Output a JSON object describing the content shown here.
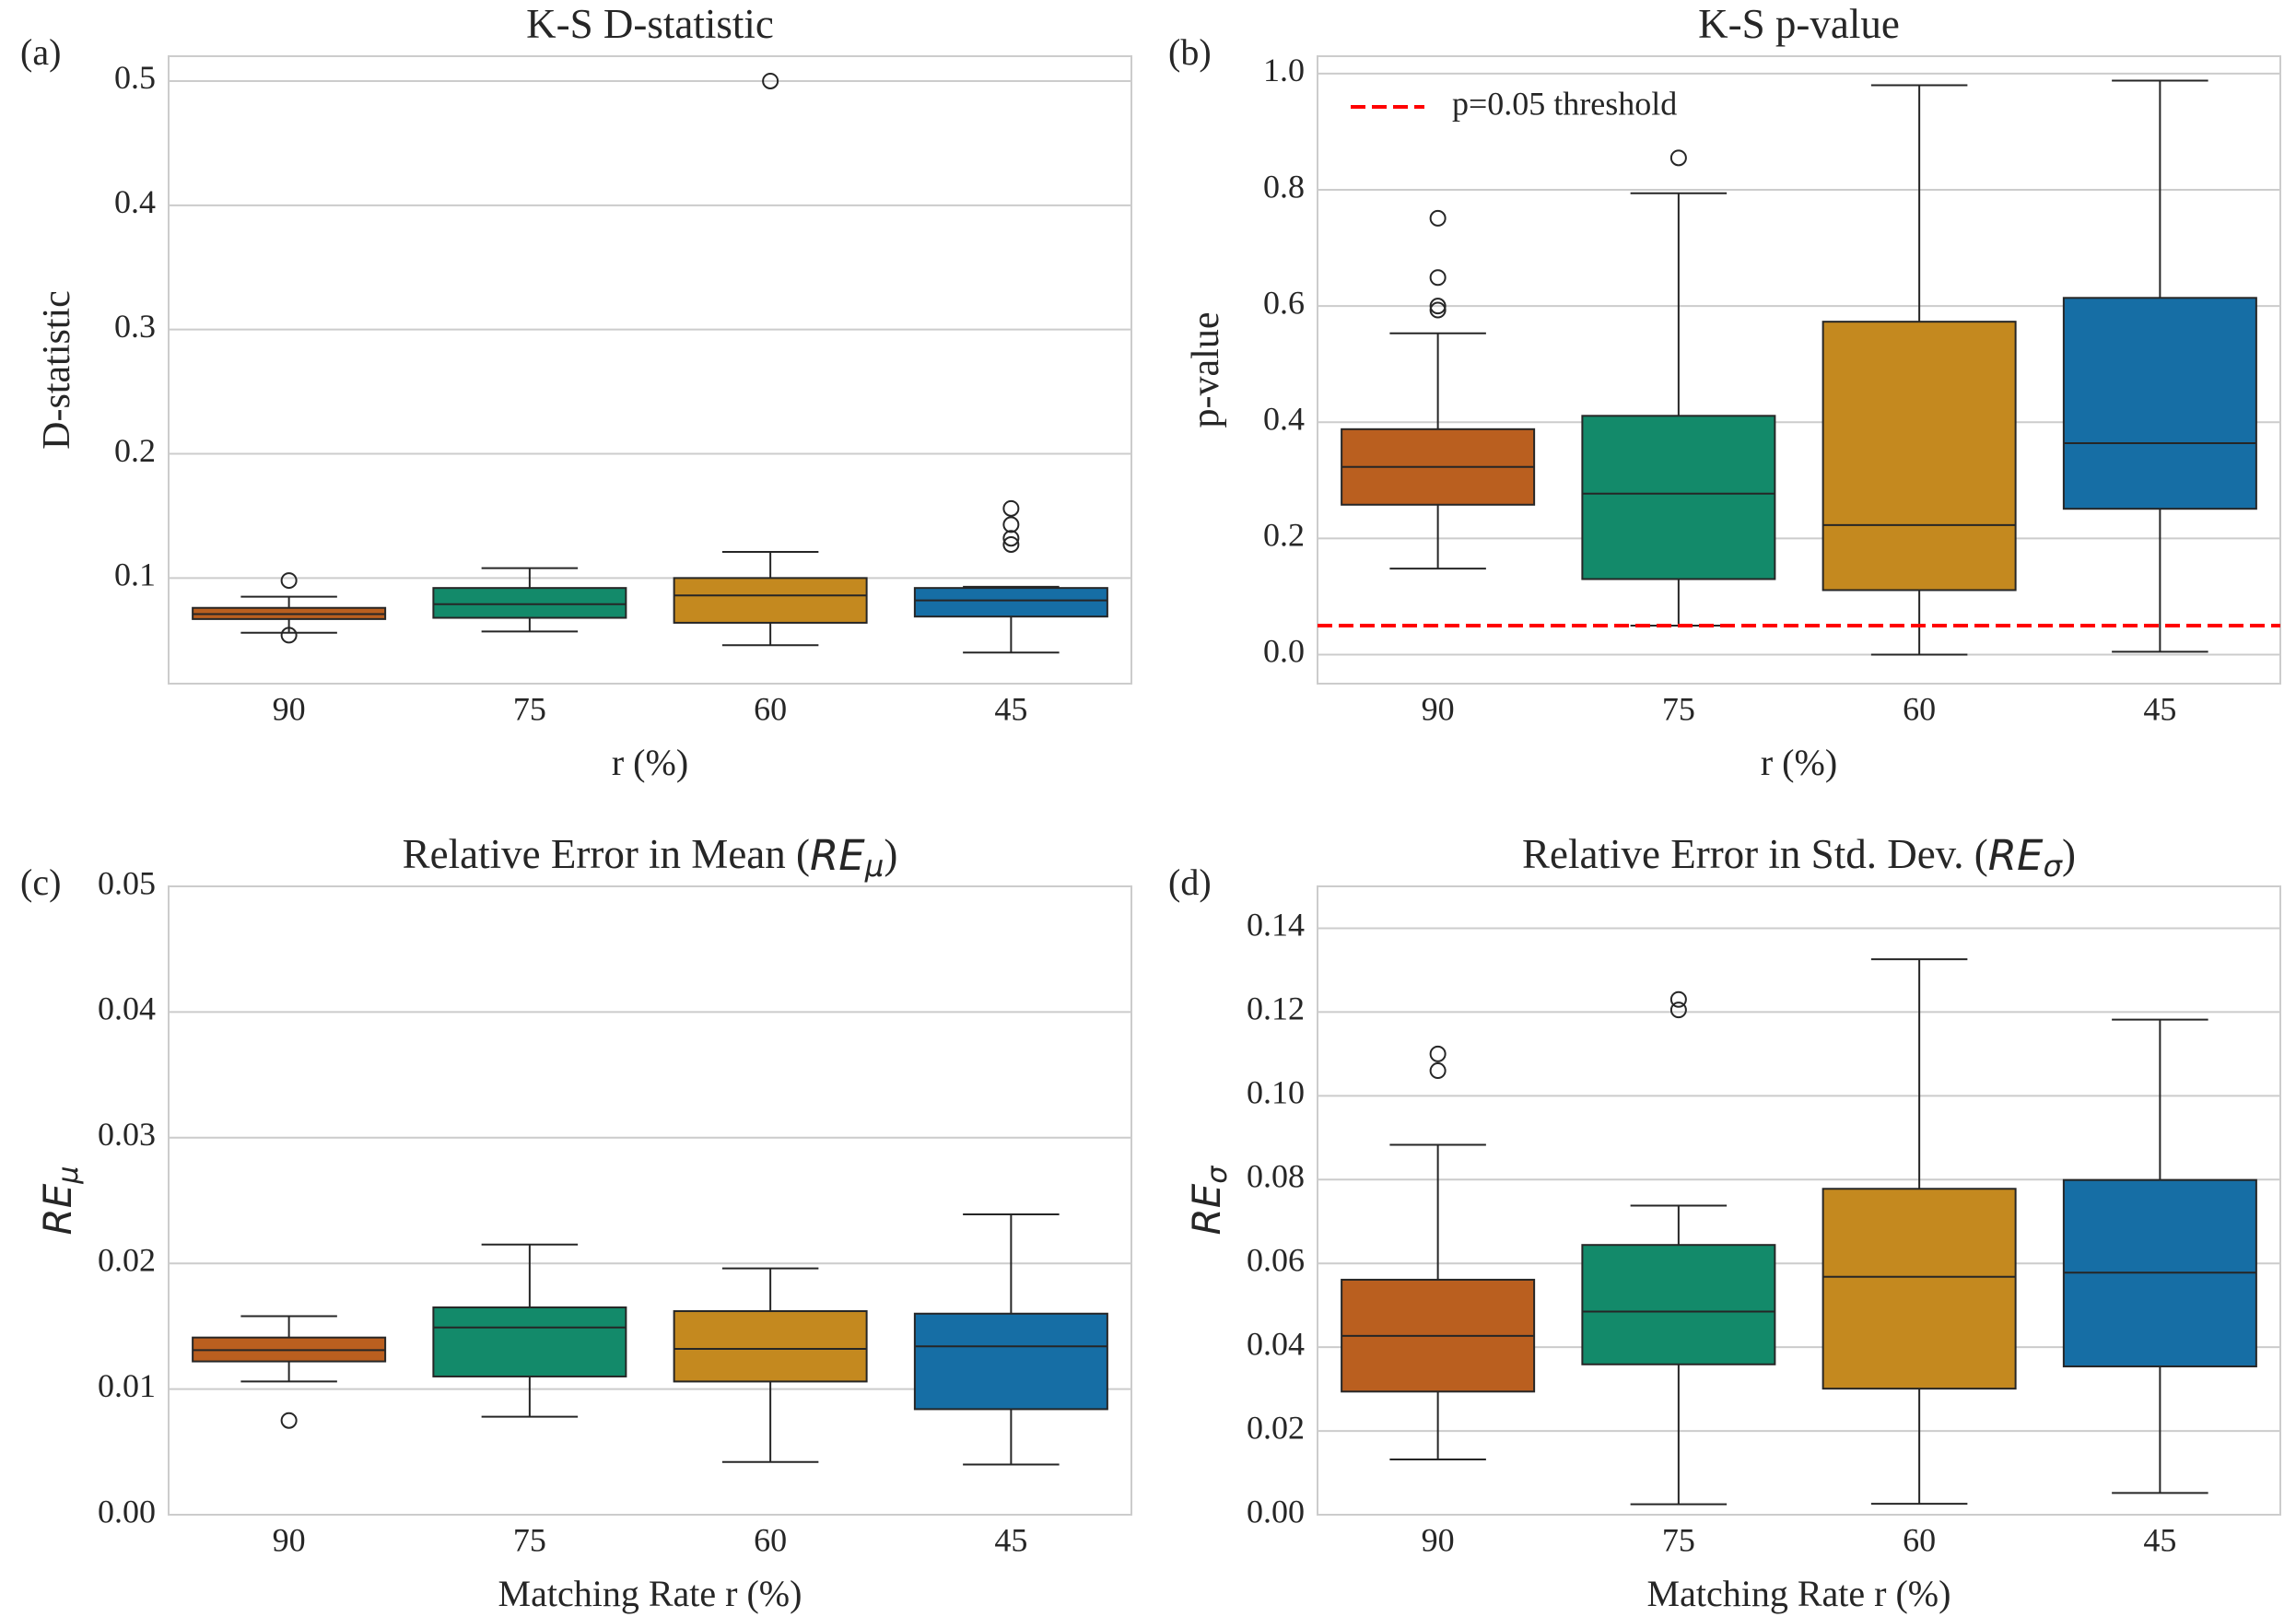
{
  "chart_data": [
    {
      "panel_label": "(a)",
      "type": "box",
      "title": "K-S D-statistic",
      "title_math": "",
      "xlabel": "r (%)",
      "ylabel": "D-statistic",
      "ylabel_math": "",
      "ylabel_sub": "",
      "ylim": [
        0.015,
        0.52
      ],
      "yticks": [
        0.1,
        0.2,
        0.3,
        0.4,
        0.5
      ],
      "ytick_labels": [
        "0.1",
        "0.2",
        "0.3",
        "0.4",
        "0.5"
      ],
      "categories": [
        "90",
        "75",
        "60",
        "45"
      ],
      "colors": [
        "#ba5f1f",
        "#138a6a",
        "#c4891f",
        "#166ea5"
      ],
      "boxes": [
        {
          "whislo": 0.056,
          "q1": 0.067,
          "med": 0.071,
          "q3": 0.076,
          "whishi": 0.085,
          "fliers": [
            0.098,
            0.054
          ]
        },
        {
          "whislo": 0.057,
          "q1": 0.068,
          "med": 0.079,
          "q3": 0.092,
          "whishi": 0.108,
          "fliers": []
        },
        {
          "whislo": 0.046,
          "q1": 0.064,
          "med": 0.086,
          "q3": 0.1,
          "whishi": 0.121,
          "fliers": [
            0.5
          ]
        },
        {
          "whislo": 0.04,
          "q1": 0.069,
          "med": 0.082,
          "q3": 0.092,
          "whishi": 0.093,
          "fliers": [
            0.156,
            0.143,
            0.132,
            0.127
          ]
        }
      ]
    },
    {
      "panel_label": "(b)",
      "type": "box",
      "title": "K-S p-value",
      "title_math": "",
      "xlabel": "r (%)",
      "ylabel": "p-value",
      "ylabel_math": "",
      "ylabel_sub": "",
      "ylim": [
        -0.05,
        1.03
      ],
      "yticks": [
        0.0,
        0.2,
        0.4,
        0.6,
        0.8,
        1.0
      ],
      "ytick_labels": [
        "0.0",
        "0.2",
        "0.4",
        "0.6",
        "0.8",
        "1.0"
      ],
      "categories": [
        "90",
        "75",
        "60",
        "45"
      ],
      "colors": [
        "#ba5f1f",
        "#138a6a",
        "#c4891f",
        "#166ea5"
      ],
      "boxes": [
        {
          "whislo": 0.148,
          "q1": 0.258,
          "med": 0.323,
          "q3": 0.388,
          "whishi": 0.553,
          "fliers": [
            0.751,
            0.649,
            0.6,
            0.593
          ]
        },
        {
          "whislo": 0.05,
          "q1": 0.13,
          "med": 0.277,
          "q3": 0.411,
          "whishi": 0.794,
          "fliers": [
            0.855
          ]
        },
        {
          "whislo": 0.0,
          "q1": 0.111,
          "med": 0.223,
          "q3": 0.573,
          "whishi": 0.98,
          "fliers": []
        },
        {
          "whislo": 0.005,
          "q1": 0.251,
          "med": 0.364,
          "q3": 0.614,
          "whishi": 0.988,
          "fliers": []
        }
      ],
      "threshold": {
        "value": 0.05,
        "label": "p=0.05 threshold",
        "color": "#ff0000"
      },
      "legend_position": "upper-left"
    },
    {
      "panel_label": "(c)",
      "type": "box",
      "title": "Relative Error in Mean (",
      "title_math": "RE",
      "title_sub": "μ",
      "title_end": ")",
      "xlabel": "Matching Rate r (%)",
      "ylabel": "",
      "ylabel_math": "RE",
      "ylabel_sub": "μ",
      "ylim": [
        0.0,
        0.05
      ],
      "yticks": [
        0.0,
        0.01,
        0.02,
        0.03,
        0.04,
        0.05
      ],
      "ytick_labels": [
        "0.00",
        "0.01",
        "0.02",
        "0.03",
        "0.04",
        "0.05"
      ],
      "categories": [
        "90",
        "75",
        "60",
        "45"
      ],
      "colors": [
        "#ba5f1f",
        "#138a6a",
        "#c4891f",
        "#166ea5"
      ],
      "boxes": [
        {
          "whislo": 0.0106,
          "q1": 0.0122,
          "med": 0.0131,
          "q3": 0.0141,
          "whishi": 0.0158,
          "fliers": [
            0.0075
          ]
        },
        {
          "whislo": 0.0078,
          "q1": 0.011,
          "med": 0.0149,
          "q3": 0.0165,
          "whishi": 0.0215,
          "fliers": []
        },
        {
          "whislo": 0.0042,
          "q1": 0.0106,
          "med": 0.0132,
          "q3": 0.0162,
          "whishi": 0.0196,
          "fliers": []
        },
        {
          "whislo": 0.004,
          "q1": 0.0084,
          "med": 0.0134,
          "q3": 0.016,
          "whishi": 0.0239,
          "fliers": []
        }
      ]
    },
    {
      "panel_label": "(d)",
      "type": "box",
      "title": "Relative Error in Std. Dev. (",
      "title_math": "RE",
      "title_sub": "σ",
      "title_end": ")",
      "xlabel": "Matching Rate r (%)",
      "ylabel": "",
      "ylabel_math": "RE",
      "ylabel_sub": "σ",
      "ylim": [
        0.0,
        0.15
      ],
      "yticks": [
        0.0,
        0.02,
        0.04,
        0.06,
        0.08,
        0.1,
        0.12,
        0.14
      ],
      "ytick_labels": [
        "0.00",
        "0.02",
        "0.04",
        "0.06",
        "0.08",
        "0.10",
        "0.12",
        "0.14"
      ],
      "categories": [
        "90",
        "75",
        "60",
        "45"
      ],
      "colors": [
        "#ba5f1f",
        "#138a6a",
        "#c4891f",
        "#166ea5"
      ],
      "boxes": [
        {
          "whislo": 0.0132,
          "q1": 0.0294,
          "med": 0.0427,
          "q3": 0.0561,
          "whishi": 0.0883,
          "fliers": [
            0.11,
            0.106
          ]
        },
        {
          "whislo": 0.0025,
          "q1": 0.0359,
          "med": 0.0485,
          "q3": 0.0644,
          "whishi": 0.0738,
          "fliers": [
            0.123,
            0.1205
          ]
        },
        {
          "whislo": 0.0026,
          "q1": 0.0301,
          "med": 0.0568,
          "q3": 0.0778,
          "whishi": 0.1326,
          "fliers": []
        },
        {
          "whislo": 0.0052,
          "q1": 0.0354,
          "med": 0.0578,
          "q3": 0.0799,
          "whishi": 0.1182,
          "fliers": []
        }
      ]
    }
  ]
}
